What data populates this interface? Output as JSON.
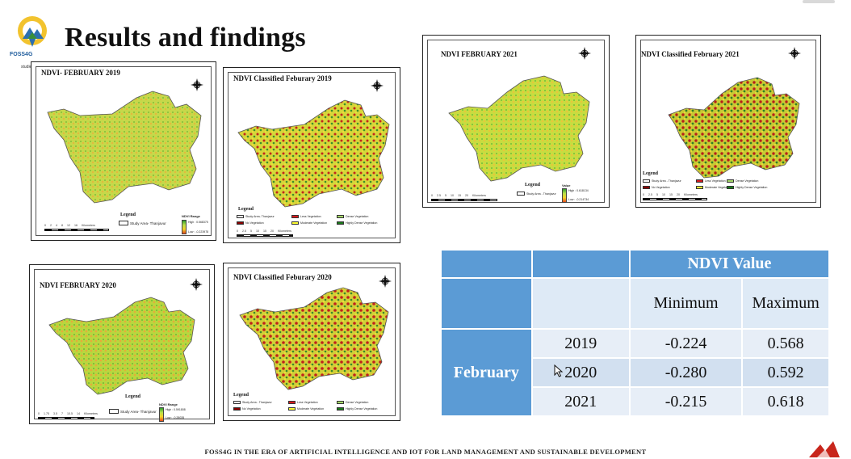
{
  "slide": {
    "title": "Results and findings"
  },
  "logo": {
    "text": "FOSS4G",
    "subtext": "studies"
  },
  "footer": "FOSS4G IN THE ERA OF ARTIFICIAL INTELLIGENCE AND IOT FOR LAND MANAGEMENT AND SUSTAINABLE DEVELOPMENT",
  "maps": {
    "ndvi_2019": {
      "title": "NDVI- FEBRUARY 2019",
      "legend_title": "Legend",
      "study_area": "Study Area- Thanjavur",
      "range_title": "NDVI Range",
      "high": "High : 0.568375",
      "low": "Low : -0.223978",
      "scale": "0 2 4 8 12 16 Kilometers"
    },
    "classified_2019": {
      "title": "NDVI Classified Feburary 2019",
      "legend_title": "Legend",
      "items": [
        "Study Area- Thanjavur",
        "Less Vegetation",
        "Dense Vegetation",
        "No Vegetation",
        "Moderate Vegetation",
        "Highly Dense Vegetation"
      ],
      "scale": "0 2.5 5 10 15 20 Kilometers"
    },
    "ndvi_2021": {
      "title": "NDVI FEBRUARY 2021",
      "legend_title": "Legend",
      "study_area": "Study Area - Thanjavur",
      "range_title": "Value",
      "high": "High : 0.618134",
      "low": "Low : -0.214734",
      "scale": "0 2.5 5 10 15 20 Kilometers"
    },
    "classified_2021": {
      "title": "NDVI Classified February 2021",
      "legend_title": "Legend",
      "items": [
        "Study Area - Thanjavur",
        "Less Vegetation",
        "Dense Vegetation",
        "No Vegetation",
        "Moderate Vegetation",
        "Highly Dense Vegetation"
      ],
      "scale": "0 2.5 5 10 15 20 Kilometers"
    },
    "ndvi_2020": {
      "title": "NDVI FEBRUARY 2020",
      "legend_title": "Legend",
      "study_area": "Study Area- Thanjavur",
      "range_title": "NDVI Range",
      "high": "High : 0.591808",
      "low": "Low : -0.28035",
      "scale": "0 1.75 3.5 7 10.5 14 Kilometers"
    },
    "classified_2020": {
      "title": "NDVI Classified Feburary 2020",
      "legend_title": "Legend",
      "items": [
        "Study Area - Thanjavur",
        "Less Vegetation",
        "Dense Vegetation",
        "No Vegetation",
        "Moderate Vegetation",
        "Highly Dense Vegetation"
      ],
      "scale": "0 2.5 5 10 15 20 Kilometers"
    }
  },
  "legend_colors": {
    "study_area": "#ffffff",
    "less": "#d7191c",
    "dense": "#a6d96a",
    "none": "#8b0000",
    "moderate": "#ffff33",
    "highly_dense": "#1a7a1a"
  },
  "table": {
    "header": "NDVI Value",
    "col_min": "Minimum",
    "col_max": "Maximum",
    "month": "February",
    "rows": [
      {
        "year": "2019",
        "min": "-0.224",
        "max": "0.568"
      },
      {
        "year": "2020",
        "min": "-0.280",
        "max": "0.592"
      },
      {
        "year": "2021",
        "min": "-0.215",
        "max": "0.618"
      }
    ]
  },
  "colors": {
    "table_header": "#5b9bd5"
  }
}
